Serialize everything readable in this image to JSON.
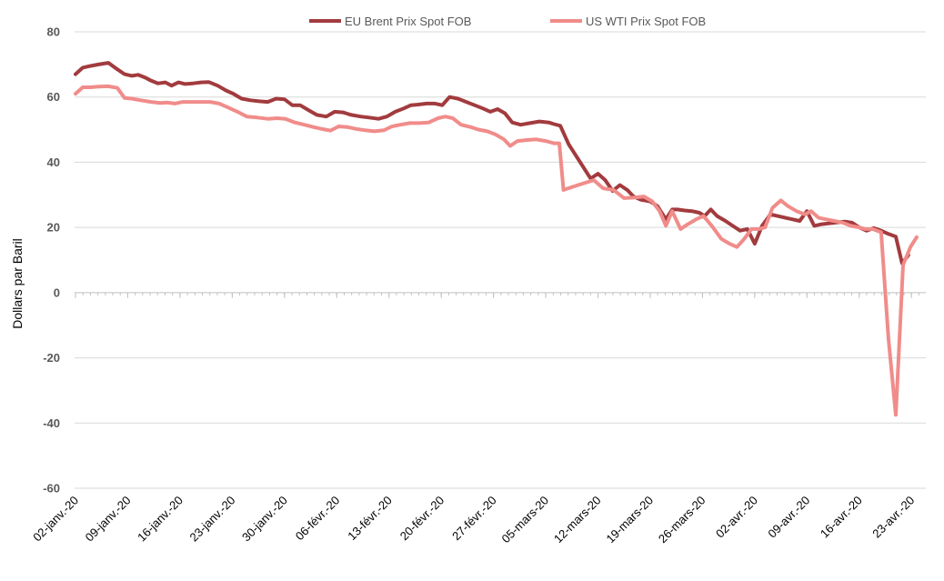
{
  "chart_data": {
    "type": "line",
    "title": "",
    "xlabel": "",
    "ylabel": "Dollars par Baril",
    "ylim": [
      -60,
      80
    ],
    "yticks": [
      80,
      60,
      40,
      20,
      0,
      -20,
      -40,
      -60
    ],
    "grid": true,
    "legend_position": "top",
    "x_range": [
      0,
      16.2
    ],
    "xtick_labels": [
      "02-janv.-20",
      "09-janv.-20",
      "16-janv.-20",
      "23-janv.-20",
      "30-janv.-20",
      "06-févr.-20",
      "13-févr.-20",
      "20-févr.-20",
      "27-févr.-20",
      "05-mars-20",
      "12-mars-20",
      "19-mars-20",
      "26-mars-20",
      "02-avr.-20",
      "09-avr.-20",
      "16-avr.-20",
      "23-avr.-20"
    ],
    "series": [
      {
        "name": "EU Brent Prix Spot FOB",
        "color": "#A23B3E",
        "x": [
          0,
          0.14,
          0.28,
          0.44,
          0.63,
          0.8,
          0.94,
          1.08,
          1.2,
          1.33,
          1.45,
          1.58,
          1.72,
          1.84,
          1.97,
          2.1,
          2.25,
          2.4,
          2.55,
          2.72,
          2.88,
          3.02,
          3.18,
          3.35,
          3.52,
          3.68,
          3.84,
          4.0,
          4.15,
          4.3,
          4.46,
          4.62,
          4.8,
          4.96,
          5.12,
          5.28,
          5.46,
          5.62,
          5.8,
          5.96,
          6.12,
          6.28,
          6.42,
          6.56,
          6.72,
          6.88,
          7.02,
          7.16,
          7.32,
          7.48,
          7.64,
          7.8,
          7.94,
          8.08,
          8.22,
          8.36,
          8.52,
          8.7,
          8.88,
          9.06,
          9.16,
          9.28,
          9.44,
          9.58,
          9.72,
          9.86,
          10.0,
          10.14,
          10.28,
          10.42,
          10.56,
          10.68,
          10.82,
          11.0,
          11.14,
          11.3,
          11.42,
          11.52,
          11.66,
          11.8,
          11.94,
          12.04,
          12.16,
          12.28,
          12.44,
          12.58,
          12.72,
          12.86,
          13.0,
          13.14,
          13.3,
          13.44,
          13.58,
          13.72,
          13.86,
          14.0,
          14.14,
          14.28,
          14.4,
          14.56,
          14.72,
          14.86,
          15.0,
          15.14,
          15.28,
          15.42,
          15.56,
          15.7,
          15.82,
          15.94
        ],
        "values": [
          67,
          69,
          69.5,
          70,
          70.5,
          68.5,
          67,
          66.5,
          66.8,
          66,
          65,
          64.2,
          64.5,
          63.5,
          64.5,
          64,
          64.2,
          64.5,
          64.6,
          63.5,
          62,
          61,
          59.5,
          59,
          58.7,
          58.5,
          59.5,
          59.3,
          57.5,
          57.5,
          56,
          54.5,
          54,
          55.5,
          55.3,
          54.5,
          54,
          53.7,
          53.3,
          54,
          55.5,
          56.5,
          57.5,
          57.7,
          58,
          58,
          57.5,
          60,
          59.5,
          58.5,
          57.5,
          56.5,
          55.5,
          56.3,
          55,
          52.2,
          51.5,
          52,
          52.5,
          52.2,
          51.7,
          51.2,
          45.5,
          42,
          38.5,
          35,
          36.5,
          34.5,
          31.2,
          33,
          31.5,
          29.5,
          28.5,
          28,
          26.5,
          22.5,
          25.5,
          25.5,
          25.2,
          25,
          24.5,
          23.5,
          25.5,
          23.5,
          22,
          20.5,
          19,
          19.5,
          15,
          20.5,
          24,
          23.5,
          23,
          22.5,
          22,
          25,
          20.5,
          21,
          21.2,
          21.5,
          21.8,
          21.5,
          20,
          19,
          19.8,
          19,
          18,
          17.2,
          9,
          11.5
        ]
      },
      {
        "name": "US WTI Prix Spot FOB",
        "color": "#F08C8A",
        "x": [
          0,
          0.14,
          0.28,
          0.44,
          0.63,
          0.8,
          0.94,
          1.08,
          1.25,
          1.45,
          1.62,
          1.76,
          1.9,
          2.05,
          2.22,
          2.4,
          2.58,
          2.75,
          2.92,
          3.1,
          3.28,
          3.48,
          3.68,
          3.86,
          4.02,
          4.2,
          4.38,
          4.55,
          4.72,
          4.88,
          5.04,
          5.2,
          5.38,
          5.55,
          5.72,
          5.9,
          6.06,
          6.22,
          6.4,
          6.58,
          6.76,
          6.94,
          7.08,
          7.22,
          7.38,
          7.56,
          7.72,
          7.88,
          8.04,
          8.2,
          8.32,
          8.46,
          8.64,
          8.82,
          9.0,
          9.16,
          9.26,
          9.34,
          9.62,
          9.92,
          10.1,
          10.3,
          10.5,
          10.7,
          10.88,
          11.04,
          11.18,
          11.3,
          11.42,
          11.58,
          11.72,
          11.88,
          12.02,
          12.18,
          12.36,
          12.52,
          12.66,
          12.8,
          12.94,
          13.08,
          13.2,
          13.34,
          13.5,
          13.64,
          13.8,
          13.96,
          14.08,
          14.22,
          14.36,
          14.52,
          14.68,
          14.84,
          15.0,
          15.12,
          15.26,
          15.42,
          15.56,
          15.7,
          15.84,
          15.98,
          16.1
        ],
        "values": [
          61,
          63,
          63,
          63.2,
          63.3,
          62.8,
          59.7,
          59.5,
          59,
          58.5,
          58.2,
          58.3,
          58,
          58.5,
          58.5,
          58.5,
          58.5,
          58,
          56.8,
          55.5,
          54,
          53.7,
          53.3,
          53.5,
          53.3,
          52.2,
          51.5,
          50.8,
          50.2,
          49.7,
          51,
          50.8,
          50.2,
          49.8,
          49.5,
          49.8,
          51,
          51.5,
          52,
          52,
          52.2,
          53.5,
          54,
          53.5,
          51.5,
          50.8,
          50,
          49.5,
          48.5,
          47,
          45,
          46.5,
          46.8,
          47,
          46.5,
          45.8,
          45.8,
          31.5,
          33,
          34.5,
          32,
          31.5,
          29,
          29.2,
          29.5,
          28,
          25,
          20.5,
          25,
          19.5,
          21,
          22.5,
          23.5,
          20.5,
          16.5,
          15,
          14,
          16.5,
          19.5,
          19.5,
          20,
          26,
          28.3,
          26.5,
          25,
          24,
          25,
          23,
          22.5,
          22,
          21.5,
          20.5,
          20,
          19.5,
          19.5,
          18.5,
          -14,
          -37.5,
          8.5,
          14,
          17
        ]
      }
    ]
  }
}
